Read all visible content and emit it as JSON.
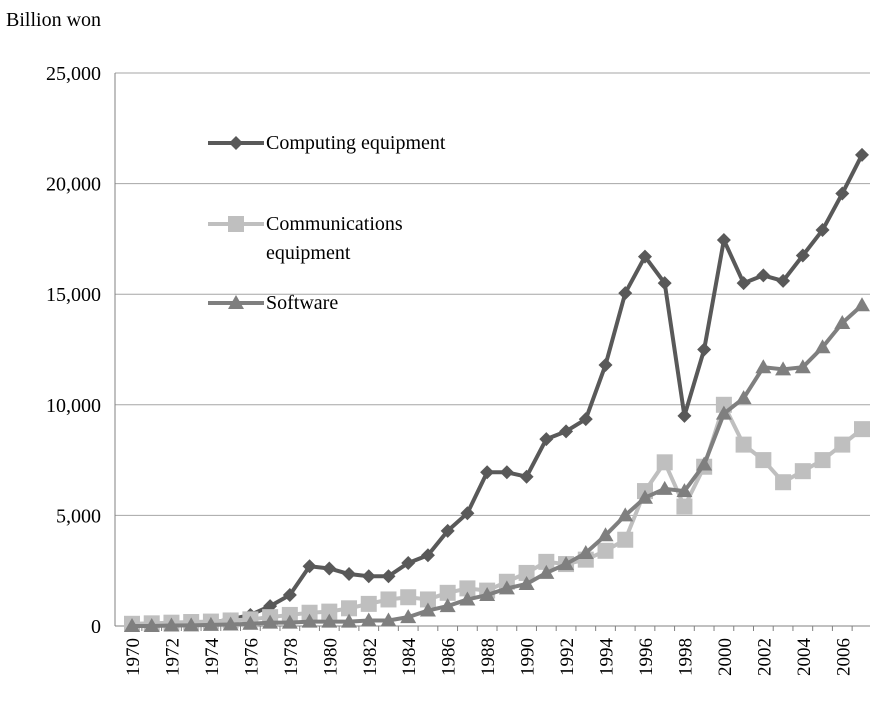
{
  "chart_data": {
    "type": "line",
    "y_label": "Billion won",
    "categories": [
      "1970",
      null,
      "1972",
      null,
      "1974",
      null,
      "1976",
      null,
      "1978",
      null,
      "1980",
      null,
      "1982",
      null,
      "1984",
      null,
      "1986",
      null,
      "1988",
      null,
      "1990",
      null,
      "1992",
      null,
      "1994",
      null,
      "1996",
      null,
      "1998",
      null,
      "2000",
      null,
      "2002",
      null,
      "2004",
      null,
      "2006",
      null
    ],
    "series": [
      {
        "name": "Computing equipment",
        "color": "#595959",
        "marker": "diamond",
        "values": [
          50,
          60,
          80,
          100,
          150,
          300,
          500,
          900,
          1400,
          2700,
          2600,
          2350,
          2250,
          2250,
          2850,
          3200,
          4300,
          5100,
          6950,
          6950,
          6750,
          8450,
          8800,
          9350,
          11800,
          15050,
          16700,
          15500,
          9500,
          12500,
          17450,
          15500,
          15850,
          15600,
          16750,
          17900,
          19550,
          21300
        ]
      },
      {
        "name": "Communications equipment",
        "color": "#bfbfbf",
        "marker": "square",
        "values": [
          100,
          120,
          150,
          180,
          200,
          250,
          300,
          400,
          500,
          600,
          650,
          800,
          1000,
          1200,
          1300,
          1200,
          1500,
          1700,
          1600,
          2000,
          2400,
          2900,
          2800,
          3000,
          3400,
          3900,
          6100,
          7400,
          5400,
          7200,
          10000,
          8200,
          7500,
          6500,
          7000,
          7500,
          8200,
          8900
        ]
      },
      {
        "name": "Software",
        "color": "#7f7f7f",
        "marker": "triangle",
        "values": [
          0,
          0,
          20,
          30,
          50,
          70,
          100,
          150,
          150,
          200,
          200,
          200,
          250,
          250,
          400,
          700,
          900,
          1200,
          1400,
          1700,
          1900,
          2400,
          2800,
          3300,
          4100,
          5000,
          5800,
          6200,
          6100,
          7300,
          9600,
          10300,
          11700,
          11600,
          11700,
          12600,
          13700,
          14500
        ]
      }
    ],
    "ylim": [
      0,
      25000
    ],
    "yticks": [
      0,
      {
        "value": 5000,
        "label": "5,000"
      },
      {
        "value": 10000,
        "label": "10,000"
      },
      {
        "value": 15000,
        "label": "15,000"
      },
      {
        "value": 20000,
        "label": "20,000"
      },
      {
        "value": 25000,
        "label": "25,000"
      }
    ],
    "grid": true
  }
}
